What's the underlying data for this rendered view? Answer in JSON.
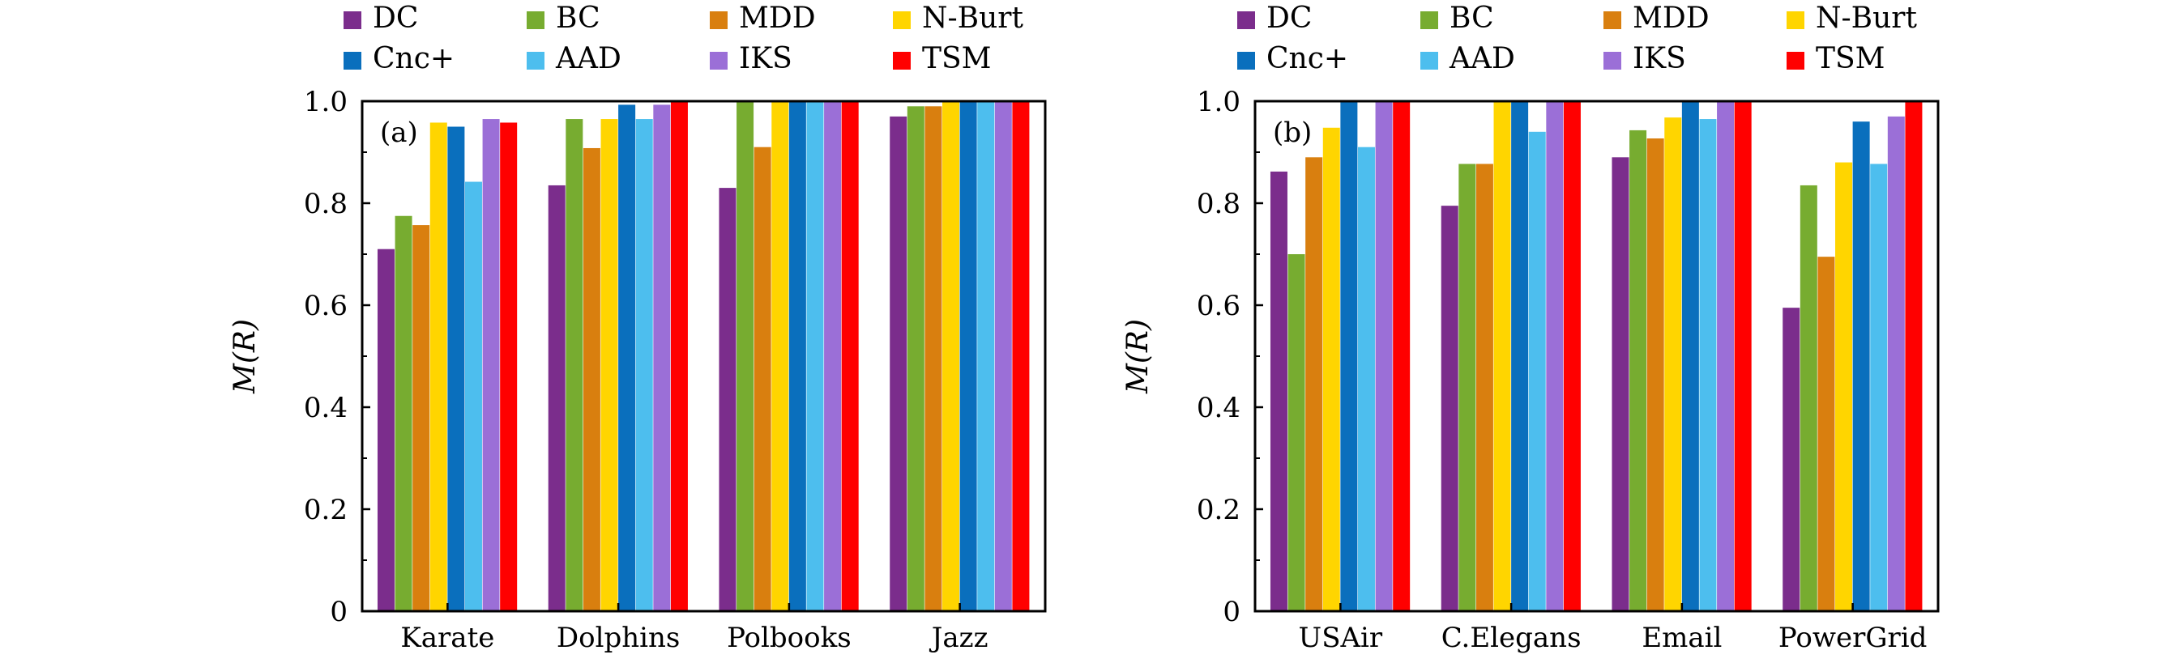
{
  "colors": {
    "DC": "#7b2d8c",
    "BC": "#77ac30",
    "MDD": "#d97f0f",
    "N-Burt": "#ffd500",
    "Cnc+": "#0a6fbd",
    "AAD": "#4dbeee",
    "IKS": "#9b6fd7",
    "TSM": "#ff0000"
  },
  "chart_data": [
    {
      "type": "bar",
      "panel_label": "(a)",
      "ylabel": "M(R)",
      "xlabel": "",
      "ylim": [
        0,
        1.0
      ],
      "yticks": [
        "0",
        "0.2",
        "0.4",
        "0.6",
        "0.8",
        "1.0"
      ],
      "legend_position": "top",
      "categories": [
        "Karate",
        "Dolphins",
        "Polbooks",
        "Jazz"
      ],
      "series": [
        {
          "name": "DC",
          "values": [
            0.71,
            0.835,
            0.83,
            0.97
          ]
        },
        {
          "name": "BC",
          "values": [
            0.775,
            0.965,
            1.0,
            0.99
          ]
        },
        {
          "name": "MDD",
          "values": [
            0.757,
            0.908,
            0.91,
            0.99
          ]
        },
        {
          "name": "N-Burt",
          "values": [
            0.958,
            0.965,
            1.0,
            1.0
          ]
        },
        {
          "name": "Cnc+",
          "values": [
            0.95,
            0.993,
            1.0,
            1.0
          ]
        },
        {
          "name": "AAD",
          "values": [
            0.842,
            0.965,
            1.0,
            1.0
          ]
        },
        {
          "name": "IKS",
          "values": [
            0.965,
            0.993,
            1.0,
            1.0
          ]
        },
        {
          "name": "TSM",
          "values": [
            0.958,
            1.0,
            1.0,
            1.0
          ]
        }
      ]
    },
    {
      "type": "bar",
      "panel_label": "(b)",
      "ylabel": "M(R)",
      "xlabel": "",
      "ylim": [
        0,
        1.0
      ],
      "yticks": [
        "0",
        "0.2",
        "0.4",
        "0.6",
        "0.8",
        "1.0"
      ],
      "legend_position": "top",
      "categories": [
        "USAir",
        "C.Elegans",
        "Email",
        "PowerGrid"
      ],
      "series": [
        {
          "name": "DC",
          "values": [
            0.862,
            0.795,
            0.89,
            0.595
          ]
        },
        {
          "name": "BC",
          "values": [
            0.7,
            0.877,
            0.943,
            0.835
          ]
        },
        {
          "name": "MDD",
          "values": [
            0.89,
            0.877,
            0.927,
            0.695
          ]
        },
        {
          "name": "N-Burt",
          "values": [
            0.948,
            1.0,
            0.968,
            0.88
          ]
        },
        {
          "name": "Cnc+",
          "values": [
            1.0,
            1.0,
            1.0,
            0.96
          ]
        },
        {
          "name": "AAD",
          "values": [
            0.91,
            0.94,
            0.965,
            0.877
          ]
        },
        {
          "name": "IKS",
          "values": [
            1.0,
            1.0,
            1.0,
            0.97
          ]
        },
        {
          "name": "TSM",
          "values": [
            1.0,
            1.0,
            1.0,
            1.0
          ]
        }
      ]
    }
  ]
}
